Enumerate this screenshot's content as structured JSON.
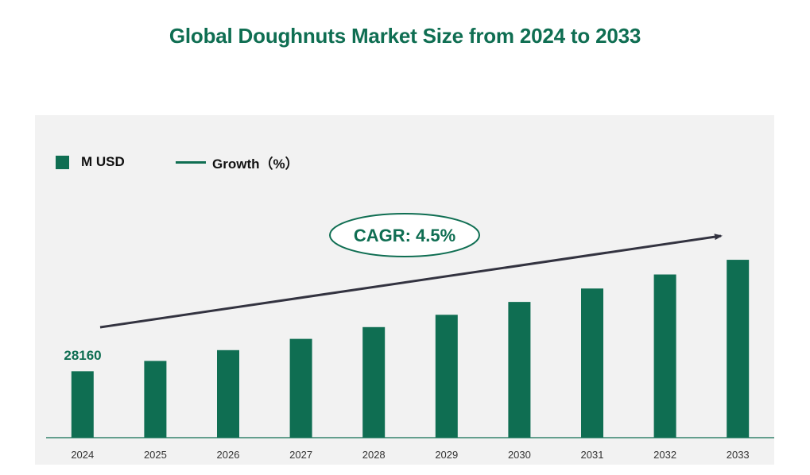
{
  "chart_data": {
    "type": "bar",
    "title": "Global Doughnuts Market Size from 2024 to 2033",
    "categories": [
      "2024",
      "2025",
      "2026",
      "2027",
      "2028",
      "2029",
      "2030",
      "2031",
      "2032",
      "2033"
    ],
    "series": [
      {
        "name": "M USD",
        "values": [
          28160,
          29427,
          30751,
          32135,
          33581,
          35092,
          36671,
          38321,
          40045,
          41847
        ]
      }
    ],
    "line_series_name": "Growth（%）",
    "first_value_label": "28160",
    "annotation": "CAGR: 4.5%",
    "xlabel": "",
    "ylabel": "",
    "ylim": [
      20000,
      44000
    ],
    "legend_position": "top-left",
    "grid": false,
    "colors": {
      "bar": "#0f6e52",
      "arrow": "#333340",
      "title": "#0f6e52",
      "panel": "#f2f2f2"
    }
  }
}
